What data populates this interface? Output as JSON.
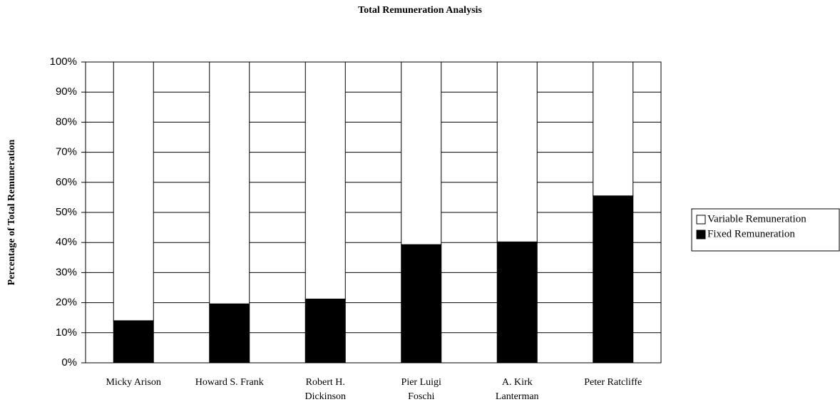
{
  "chart_data": {
    "type": "bar",
    "stacked": true,
    "title": "Total Remuneration Analysis",
    "y_label": "Percentage of Total Remuneration",
    "categories": [
      "Micky Arison",
      "Howard S. Frank",
      "Robert H.\nDickinson",
      "Pier Luigi\nFoschi",
      "A. Kirk\nLanterman",
      "Peter Ratcliffe"
    ],
    "series": [
      {
        "name": "Fixed Remuneration",
        "color": "#000000",
        "values": [
          14,
          19.6,
          21.2,
          39.3,
          40.2,
          55.5
        ]
      },
      {
        "name": "Variable Remuneration",
        "color": "#ffffff",
        "values": [
          86,
          80.4,
          78.8,
          60.7,
          59.8,
          44.5
        ]
      }
    ],
    "ylim": [
      0,
      100
    ],
    "yticks": [
      {
        "value": 0,
        "label": "0%"
      },
      {
        "value": 10,
        "label": "10%"
      },
      {
        "value": 20,
        "label": "20%"
      },
      {
        "value": 30,
        "label": "30%"
      },
      {
        "value": 40,
        "label": "40%"
      },
      {
        "value": 50,
        "label": "50%"
      },
      {
        "value": 60,
        "label": "60%"
      },
      {
        "value": 70,
        "label": "70%"
      },
      {
        "value": 80,
        "label": "80%"
      },
      {
        "value": 90,
        "label": "90%"
      },
      {
        "value": 100,
        "label": "100%"
      }
    ],
    "grid": true,
    "legend": "right"
  }
}
